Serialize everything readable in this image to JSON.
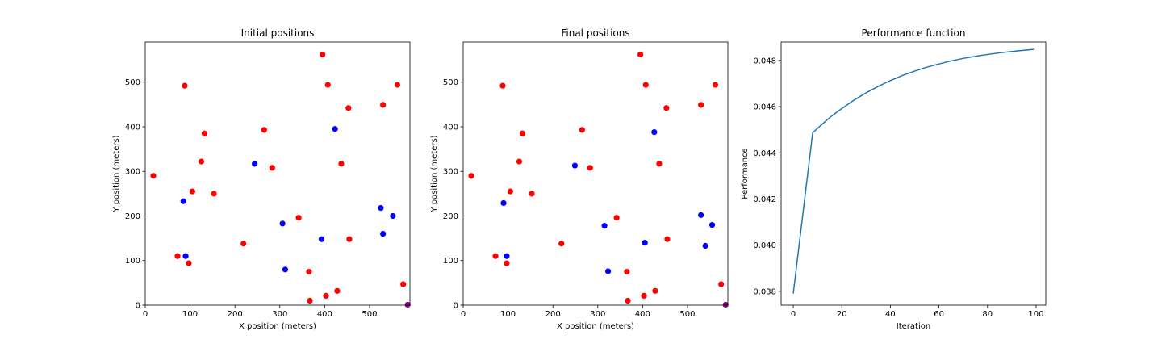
{
  "chart_data": [
    {
      "type": "scatter",
      "title": "Initial positions",
      "xlabel": "X position (meters)",
      "ylabel": "Y position (meters)",
      "xlim": [
        0,
        590
      ],
      "ylim": [
        0,
        590
      ],
      "xticks": [
        0,
        100,
        200,
        300,
        400,
        500
      ],
      "yticks": [
        0,
        100,
        200,
        300,
        400,
        500
      ],
      "grid": false,
      "colors": {
        "red": "#ff0000",
        "blue": "#0000ff",
        "purple": "#800080"
      },
      "series": [
        {
          "color": "red",
          "points": [
            [
              18,
              290
            ],
            [
              88,
              492
            ],
            [
              132,
              385
            ],
            [
              125,
              322
            ],
            [
              105,
              255
            ],
            [
              153,
              250
            ],
            [
              72,
              110
            ],
            [
              97,
              94
            ],
            [
              219,
              138
            ],
            [
              265,
              393
            ],
            [
              283,
              308
            ],
            [
              342,
              196
            ],
            [
              365,
              75
            ],
            [
              367,
              10
            ],
            [
              395,
              562
            ],
            [
              407,
              494
            ],
            [
              437,
              317
            ],
            [
              453,
              442
            ],
            [
              455,
              148
            ],
            [
              403,
              21
            ],
            [
              428,
              32
            ],
            [
              530,
              449
            ],
            [
              562,
              494
            ],
            [
              575,
              47
            ]
          ]
        },
        {
          "color": "blue",
          "points": [
            [
              85,
              233
            ],
            [
              90,
              110
            ],
            [
              244,
              317
            ],
            [
              306,
              183
            ],
            [
              312,
              80
            ],
            [
              393,
              148
            ],
            [
              423,
              395
            ],
            [
              525,
              218
            ],
            [
              530,
              160
            ],
            [
              552,
              200
            ]
          ]
        },
        {
          "color": "purple",
          "points": [
            [
              585,
              1
            ]
          ]
        }
      ]
    },
    {
      "type": "scatter",
      "title": "Final positions",
      "xlabel": "X position (meters)",
      "ylabel": "Y position (meters)",
      "xlim": [
        0,
        590
      ],
      "ylim": [
        0,
        590
      ],
      "xticks": [
        0,
        100,
        200,
        300,
        400,
        500
      ],
      "yticks": [
        0,
        100,
        200,
        300,
        400,
        500
      ],
      "grid": false,
      "colors": {
        "red": "#ff0000",
        "blue": "#0000ff",
        "purple": "#800080"
      },
      "series": [
        {
          "color": "red",
          "points": [
            [
              18,
              290
            ],
            [
              88,
              492
            ],
            [
              132,
              385
            ],
            [
              125,
              322
            ],
            [
              105,
              255
            ],
            [
              153,
              250
            ],
            [
              72,
              110
            ],
            [
              97,
              94
            ],
            [
              219,
              138
            ],
            [
              265,
              393
            ],
            [
              283,
              308
            ],
            [
              342,
              196
            ],
            [
              365,
              75
            ],
            [
              367,
              10
            ],
            [
              395,
              562
            ],
            [
              407,
              494
            ],
            [
              437,
              317
            ],
            [
              453,
              442
            ],
            [
              455,
              148
            ],
            [
              403,
              21
            ],
            [
              428,
              32
            ],
            [
              530,
              449
            ],
            [
              562,
              494
            ],
            [
              575,
              47
            ]
          ]
        },
        {
          "color": "blue",
          "points": [
            [
              90,
              229
            ],
            [
              97,
              110
            ],
            [
              249,
              313
            ],
            [
              315,
              178
            ],
            [
              323,
              76
            ],
            [
              405,
              140
            ],
            [
              426,
              388
            ],
            [
              530,
              202
            ],
            [
              540,
              133
            ],
            [
              555,
              180
            ]
          ]
        },
        {
          "color": "purple",
          "points": [
            [
              585,
              1
            ]
          ]
        }
      ]
    },
    {
      "type": "line",
      "title": "Performance function",
      "xlabel": "Iteration",
      "ylabel": "Performance",
      "xlim": [
        -5,
        104
      ],
      "ylim": [
        0.0374,
        0.0488
      ],
      "xticks": [
        0,
        20,
        40,
        60,
        80,
        100
      ],
      "yticks": [
        0.038,
        0.04,
        0.042,
        0.044,
        0.046,
        0.048
      ],
      "ytick_labels": [
        "0.038",
        "0.040",
        "0.042",
        "0.044",
        "0.046",
        "0.048"
      ],
      "grid": false,
      "colors": {
        "line": "#1f77b4"
      },
      "series": [
        {
          "x": [
            0,
            8,
            12,
            16,
            20,
            25,
            30,
            35,
            40,
            45,
            50,
            55,
            60,
            65,
            70,
            75,
            80,
            85,
            90,
            95,
            99
          ],
          "values": [
            0.0379,
            0.04487,
            0.04525,
            0.04561,
            0.04592,
            0.04628,
            0.0466,
            0.04688,
            0.04713,
            0.04735,
            0.04754,
            0.04771,
            0.04785,
            0.04798,
            0.04809,
            0.04818,
            0.04826,
            0.04833,
            0.04839,
            0.04844,
            0.04848
          ]
        }
      ]
    }
  ]
}
